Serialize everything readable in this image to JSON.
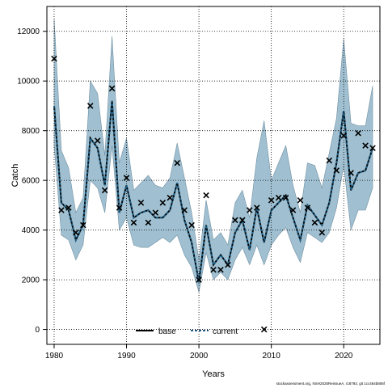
{
  "chart_data": {
    "type": "line",
    "xlabel": "Years",
    "ylabel": "Catch",
    "xlim": [
      1979,
      2025
    ],
    "ylim": [
      -600,
      13000
    ],
    "x_ticks": [
      1980,
      1990,
      2000,
      2010,
      2020
    ],
    "y_ticks": [
      0,
      2000,
      4000,
      6000,
      8000,
      10000,
      12000
    ],
    "grid": true,
    "legend_position": "bottom",
    "band_color": "#8fb5c9",
    "current_color": "#1f5f85",
    "base_color": "#000000",
    "x": [
      1980,
      1981,
      1982,
      1983,
      1984,
      1985,
      1986,
      1987,
      1988,
      1989,
      1990,
      1991,
      1992,
      1993,
      1994,
      1995,
      1996,
      1997,
      1998,
      1999,
      2000,
      2001,
      2002,
      2003,
      2004,
      2005,
      2006,
      2007,
      2008,
      2009,
      2010,
      2011,
      2012,
      2013,
      2014,
      2015,
      2016,
      2017,
      2018,
      2019,
      2020,
      2021,
      2022,
      2023,
      2024
    ],
    "series": [
      {
        "name": "base",
        "type": "line",
        "values": [
          9000,
          5100,
          4800,
          3600,
          4200,
          7700,
          7300,
          5800,
          9200,
          4700,
          5800,
          4500,
          4700,
          4800,
          4500,
          4500,
          4800,
          5900,
          4400,
          3500,
          1900,
          4200,
          2600,
          3000,
          2600,
          3900,
          4400,
          3200,
          4900,
          3500,
          4800,
          5100,
          5400,
          4500,
          3600,
          5000,
          4600,
          4200,
          5100,
          6700,
          8800,
          5600,
          6300,
          6400,
          7300
        ]
      },
      {
        "name": "current",
        "type": "line",
        "values": [
          9000,
          5100,
          4800,
          3600,
          4200,
          7700,
          7300,
          5800,
          9200,
          4700,
          5800,
          4500,
          4700,
          4800,
          4500,
          4500,
          4800,
          5900,
          4400,
          3500,
          1900,
          4200,
          2600,
          3000,
          2600,
          3900,
          4400,
          3200,
          4900,
          3500,
          4800,
          5100,
          5400,
          4500,
          3600,
          5000,
          4600,
          4200,
          5100,
          6700,
          8800,
          5600,
          6300,
          6400,
          7300
        ]
      },
      {
        "name": "",
        "type": "band",
        "lower": [
          7400,
          3800,
          3600,
          2800,
          3400,
          6000,
          5700,
          4700,
          7400,
          4000,
          4500,
          3400,
          3300,
          3300,
          3500,
          3700,
          3500,
          3800,
          3000,
          2500,
          1500,
          3100,
          2000,
          2300,
          2000,
          2800,
          3300,
          2600,
          3400,
          2600,
          3400,
          3800,
          4100,
          3300,
          2700,
          3900,
          3700,
          3500,
          3900,
          4900,
          6600,
          4000,
          4800,
          4800,
          5700
        ],
        "upper": [
          12500,
          7200,
          6500,
          4700,
          5300,
          10000,
          9500,
          7000,
          11800,
          6700,
          7700,
          5600,
          5900,
          6200,
          5800,
          5700,
          6100,
          7500,
          6100,
          4700,
          2800,
          5200,
          3600,
          3900,
          3400,
          5100,
          5600,
          4500,
          6900,
          8400,
          6000,
          6700,
          7400,
          5800,
          4700,
          6700,
          6600,
          5700,
          7100,
          8500,
          11700,
          8300,
          8200,
          8200,
          9800
        ]
      },
      {
        "name": "",
        "type": "points",
        "marker": "x",
        "values": [
          10900,
          4800,
          4900,
          3900,
          4200,
          9000,
          7600,
          5600,
          9700,
          4900,
          6100,
          4300,
          5100,
          4300,
          4700,
          5100,
          5300,
          6700,
          4800,
          4200,
          2000,
          5400,
          2400,
          2400,
          2600,
          4400,
          4400,
          4800,
          4900,
          0,
          5200,
          5300,
          5300,
          4800,
          5200,
          4900,
          4300,
          3900,
          6800,
          6400,
          7800,
          6300,
          7900,
          7400,
          7300
        ]
      }
    ]
  },
  "footnote": "stockassessment.org, NSH2025ReissueA, r18793, git 1cc464b806f"
}
